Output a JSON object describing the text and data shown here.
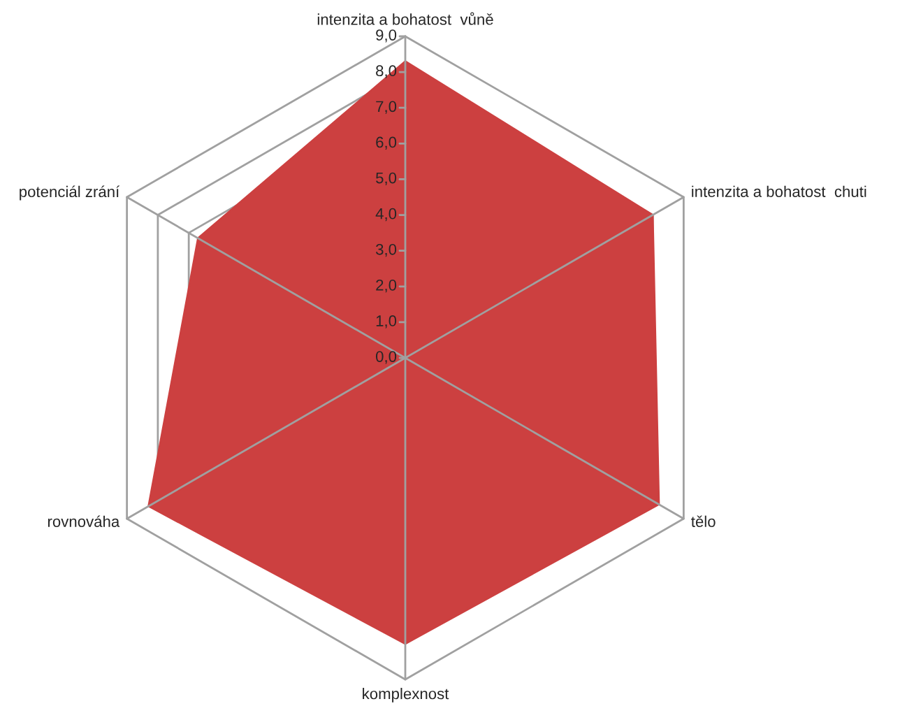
{
  "chart_data": {
    "type": "radar",
    "categories": [
      "intenzita a bohatost  vůně",
      "intenzita a bohatost  chuti",
      "tělo",
      "komplexnost",
      "rovnováha",
      "potenciál zrání"
    ],
    "series": [
      {
        "color": "#cc4040",
        "values": [
          8.3,
          8.0,
          8.2,
          8.0,
          8.3,
          6.7
        ]
      }
    ],
    "ylim": [
      0,
      9
    ],
    "yticks": [
      {
        "value": 0,
        "label": "0,0"
      },
      {
        "value": 1,
        "label": "1,0"
      },
      {
        "value": 2,
        "label": "2,0"
      },
      {
        "value": 3,
        "label": "3,0"
      },
      {
        "value": 4,
        "label": "4,0"
      },
      {
        "value": 5,
        "label": "5,0"
      },
      {
        "value": 6,
        "label": "6,0"
      },
      {
        "value": 7,
        "label": "7,0"
      },
      {
        "value": 8,
        "label": "8,0"
      },
      {
        "value": 9,
        "label": "9,0"
      }
    ],
    "grid": true
  }
}
